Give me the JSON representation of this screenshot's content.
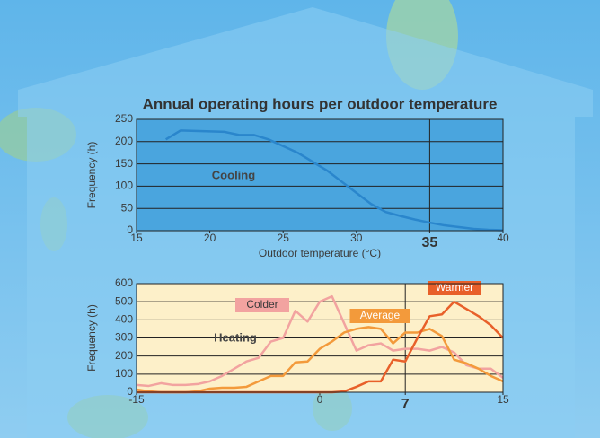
{
  "chart_data": [
    {
      "type": "line",
      "title": "Annual operating hours per outdoor temperature",
      "xlabel": "Outdoor temperature (°C)",
      "ylabel": "Frequency (h)",
      "x": [
        17,
        18,
        19,
        20,
        21,
        22,
        23,
        24,
        25,
        26,
        27,
        28,
        29,
        30,
        31,
        32,
        33,
        34,
        35,
        36,
        37,
        38,
        39,
        40
      ],
      "series": [
        {
          "name": "Cooling",
          "color": "#2a86cc",
          "values": [
            205,
            225,
            224,
            223,
            222,
            215,
            215,
            205,
            190,
            175,
            155,
            135,
            110,
            85,
            60,
            42,
            33,
            25,
            18,
            12,
            8,
            4,
            2,
            1
          ]
        }
      ],
      "xlim": [
        15,
        40
      ],
      "xticks": [
        15,
        20,
        25,
        30,
        35,
        40
      ],
      "ylim": [
        0,
        250
      ],
      "yticks": [
        0,
        50,
        100,
        150,
        200,
        250
      ],
      "vline": 35,
      "grid": true,
      "plot_background": "#4aa5de"
    },
    {
      "type": "line",
      "ylabel": "Frequency (h)",
      "annotation": "Heating",
      "x": [
        -15,
        -14,
        -13,
        -12,
        -11,
        -10,
        -9,
        -8,
        -7,
        -6,
        -5,
        -4,
        -3,
        -2,
        -1,
        0,
        1,
        2,
        3,
        4,
        5,
        6,
        7,
        8,
        9,
        10,
        11,
        12,
        13,
        14,
        15
      ],
      "series": [
        {
          "name": "Colder",
          "color": "#f2a3a0",
          "values": [
            40,
            35,
            50,
            40,
            40,
            45,
            60,
            90,
            130,
            170,
            190,
            280,
            300,
            450,
            390,
            500,
            530,
            380,
            230,
            260,
            270,
            230,
            240,
            240,
            230,
            250,
            220,
            150,
            130,
            130,
            80
          ]
        },
        {
          "name": "Average",
          "color": "#f39a3b",
          "values": [
            15,
            5,
            0,
            0,
            0,
            5,
            20,
            25,
            25,
            30,
            60,
            90,
            90,
            165,
            170,
            240,
            280,
            330,
            350,
            360,
            350,
            270,
            330,
            330,
            350,
            310,
            180,
            160,
            130,
            90,
            60
          ]
        },
        {
          "name": "Warmer",
          "color": "#e8602a",
          "values": [
            0,
            0,
            0,
            0,
            0,
            0,
            0,
            0,
            0,
            0,
            0,
            0,
            0,
            0,
            0,
            0,
            0,
            5,
            30,
            60,
            60,
            180,
            170,
            300,
            420,
            430,
            500,
            460,
            420,
            370,
            300
          ]
        }
      ],
      "xlim": [
        -15,
        15
      ],
      "xticks": [
        -15,
        0,
        7,
        15
      ],
      "ylim": [
        0,
        600
      ],
      "yticks": [
        0,
        100,
        200,
        300,
        400,
        500,
        600
      ],
      "vline": 7,
      "grid": true,
      "plot_background": "#fdf0c9"
    }
  ]
}
